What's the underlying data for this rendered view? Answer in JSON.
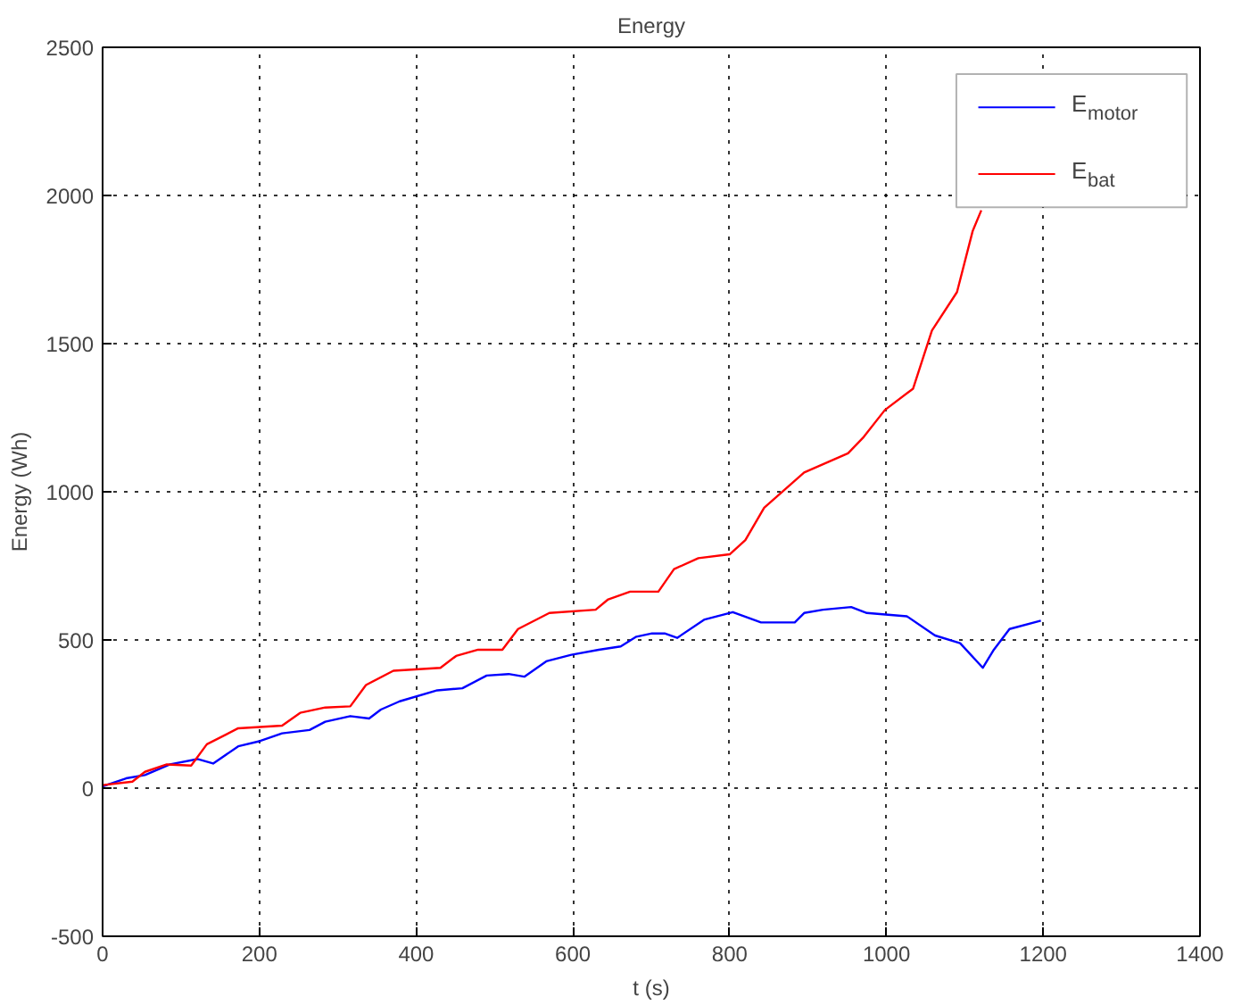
{
  "chart_data": {
    "type": "line",
    "title": "Energy",
    "xlabel": "t (s)",
    "ylabel": "Energy (Wh)",
    "xlim": [
      0,
      1400
    ],
    "ylim": [
      -500,
      2500
    ],
    "xticks": [
      0,
      200,
      400,
      600,
      800,
      1000,
      1200,
      1400
    ],
    "yticks": [
      -500,
      0,
      500,
      1000,
      1500,
      2000,
      2500
    ],
    "grid": true,
    "legend": "top right",
    "line_style": "solid",
    "series": [
      {
        "name": "E$_{motor}$",
        "color": "#0000ff",
        "x": [
          0,
          30,
          54,
          86,
          121,
          141,
          173,
          201,
          229,
          264,
          284,
          316,
          340,
          355,
          379,
          427,
          459,
          490,
          518,
          538,
          566,
          598,
          633,
          661,
          681,
          701,
          717,
          733,
          768,
          804,
          840,
          883,
          895,
          919,
          955,
          975,
          1026,
          1062,
          1094,
          1123,
          1137,
          1157,
          1197
        ],
        "values": [
          6,
          33,
          44,
          80,
          98,
          83,
          141,
          159,
          185,
          196,
          224,
          243,
          235,
          265,
          293,
          330,
          337,
          380,
          385,
          376,
          428,
          450,
          467,
          478,
          511,
          522,
          522,
          507,
          569,
          594,
          559,
          559,
          591,
          602,
          611,
          591,
          580,
          515,
          489,
          406,
          467,
          537,
          565
        ]
      },
      {
        "name": "E$_{bat}$",
        "color": "#ff0000",
        "x": [
          0,
          38,
          54,
          82,
          113,
          133,
          173,
          229,
          252,
          284,
          316,
          336,
          371,
          431,
          451,
          479,
          510,
          530,
          570,
          629,
          645,
          673,
          709,
          729,
          760,
          800,
          820,
          844,
          895,
          951,
          971,
          998,
          1034,
          1058,
          1090,
          1110,
          1121
        ],
        "values": [
          10,
          22,
          55,
          80,
          76,
          148,
          202,
          211,
          254,
          272,
          276,
          348,
          396,
          406,
          446,
          467,
          467,
          537,
          591,
          602,
          637,
          663,
          663,
          739,
          776,
          789,
          837,
          946,
          1065,
          1130,
          1185,
          1276,
          1348,
          1544,
          1674,
          1880,
          1950
        ]
      }
    ]
  }
}
